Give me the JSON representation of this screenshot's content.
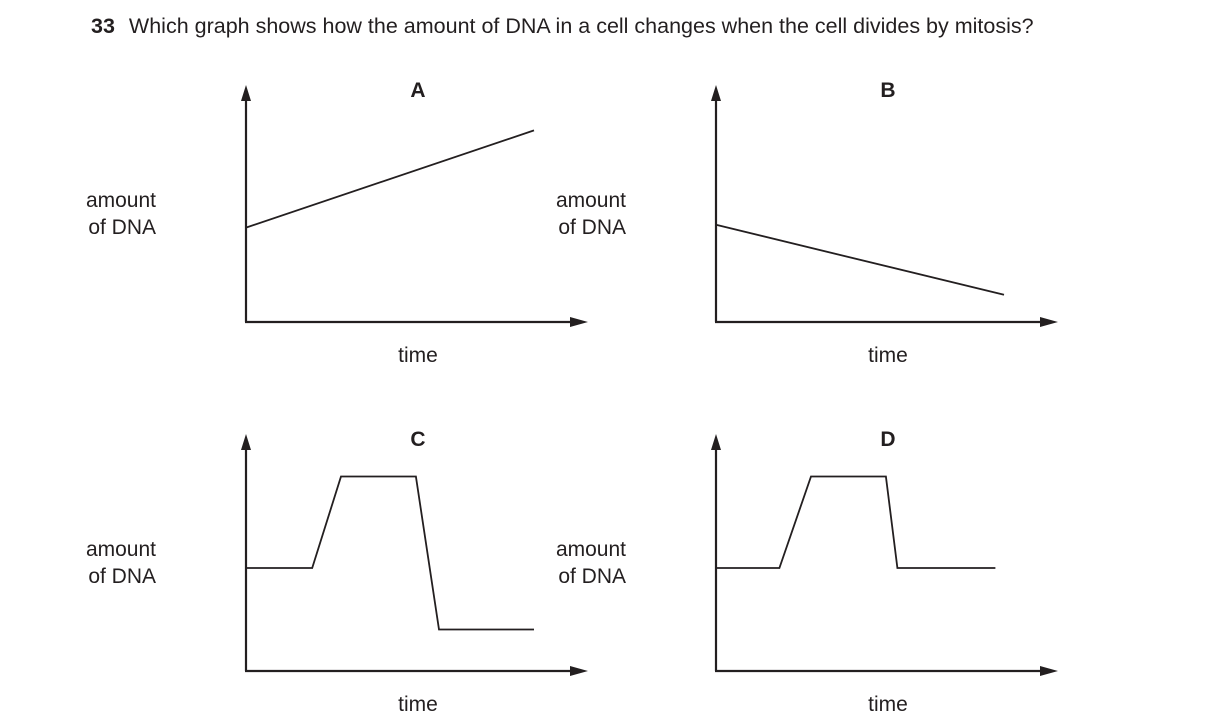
{
  "question": {
    "number": "33",
    "text": "Which graph shows how the amount of DNA in a cell changes when the cell divides by mitosis?"
  },
  "chart_data": [
    {
      "type": "line",
      "panel_label": "A",
      "ylabel": [
        "amount",
        "of DNA"
      ],
      "xlabel": "time",
      "x": [
        0,
        10
      ],
      "y": [
        3.3,
        6.7
      ],
      "xlim": [
        0,
        12
      ],
      "ylim": [
        0,
        8
      ],
      "grid": false
    },
    {
      "type": "line",
      "panel_label": "B",
      "ylabel": [
        "amount",
        "of DNA"
      ],
      "xlabel": "time",
      "x": [
        0,
        10
      ],
      "y": [
        3.4,
        0.95
      ],
      "xlim": [
        0,
        12
      ],
      "ylim": [
        0,
        8
      ],
      "grid": false
    },
    {
      "type": "line",
      "panel_label": "C",
      "ylabel": [
        "amount",
        "of DNA"
      ],
      "xlabel": "time",
      "x": [
        0,
        2.3,
        3.3,
        5.9,
        6.7,
        10
      ],
      "y": [
        3.6,
        3.6,
        6.8,
        6.8,
        1.45,
        1.45
      ],
      "xlim": [
        0,
        12
      ],
      "ylim": [
        0,
        8
      ],
      "grid": false
    },
    {
      "type": "line",
      "panel_label": "D",
      "ylabel": [
        "amount",
        "of DNA"
      ],
      "xlabel": "time",
      "x": [
        0,
        2.2,
        3.3,
        5.9,
        6.3,
        9.7
      ],
      "y": [
        3.6,
        3.6,
        6.8,
        6.8,
        3.6,
        3.6
      ],
      "xlim": [
        0,
        12
      ],
      "ylim": [
        0,
        8
      ],
      "grid": false
    }
  ]
}
